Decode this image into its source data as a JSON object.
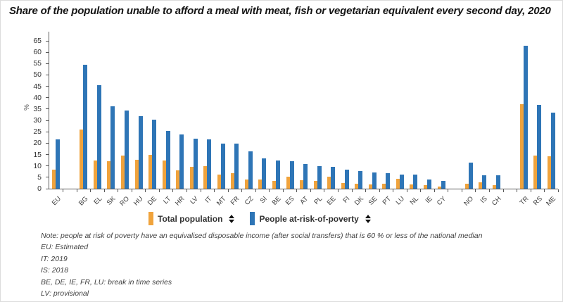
{
  "title": "Share of the population unable to afford a meal with meat, fish or vegetarian equivalent every second day, 2020",
  "legend": {
    "items": [
      {
        "label": "Total population",
        "color": "#F0A33C"
      },
      {
        "label": "People at-risk-of-poverty",
        "color": "#2E75B6"
      }
    ]
  },
  "notes": [
    "Note: people at risk of poverty have an equivalised disposable income (after social transfers) that is 60 % or less of the national median",
    "EU: Estimated",
    "IT: 2019",
    "IS: 2018",
    "BE, DE, IE, FR, LU: break in time series",
    "LV: provisional"
  ],
  "chart_data": {
    "type": "bar",
    "title": "Share of the population unable to afford a meal with meat, fish or vegetarian equivalent every second day, 2020",
    "xlabel": "",
    "ylabel": "%",
    "ylim": [
      0,
      65
    ],
    "y_ticks": [
      0,
      5,
      10,
      15,
      20,
      25,
      30,
      35,
      40,
      45,
      50,
      55,
      60,
      65
    ],
    "grid": false,
    "legend_position": "bottom",
    "categories": [
      "EU",
      "",
      "BG",
      "EL",
      "SK",
      "RO",
      "HU",
      "DE",
      "LT",
      "HR",
      "LV",
      "IT",
      "MT",
      "FR",
      "CZ",
      "SI",
      "BE",
      "ES",
      "AT",
      "PL",
      "EE",
      "FI",
      "DK",
      "SE",
      "PT",
      "LU",
      "NL",
      "IE",
      "CY",
      "",
      "NO",
      "IS",
      "CH",
      "",
      "TR",
      "RS",
      "ME"
    ],
    "series": [
      {
        "name": "Total population",
        "color": "#F0A33C",
        "values": [
          8.5,
          null,
          26.0,
          12.5,
          12.0,
          14.6,
          12.8,
          14.8,
          12.3,
          8.0,
          9.5,
          9.9,
          6.3,
          6.9,
          3.9,
          4.1,
          3.4,
          5.4,
          3.8,
          3.3,
          5.2,
          2.6,
          2.2,
          1.8,
          2.2,
          4.2,
          2.0,
          1.5,
          0.8,
          null,
          2.3,
          2.8,
          1.5,
          null,
          37.2,
          14.6,
          14.2
        ]
      },
      {
        "name": "People at-risk-of-poverty",
        "color": "#2E75B6",
        "values": [
          21.6,
          null,
          54.4,
          45.5,
          36.3,
          34.5,
          31.8,
          30.5,
          25.5,
          24.0,
          22.1,
          21.8,
          19.8,
          19.7,
          16.5,
          13.3,
          12.5,
          12.0,
          10.8,
          10.0,
          9.6,
          8.4,
          7.8,
          7.2,
          6.7,
          6.2,
          6.1,
          3.9,
          3.5,
          null,
          11.4,
          5.9,
          5.8,
          null,
          62.8,
          36.7,
          33.3
        ]
      }
    ]
  }
}
